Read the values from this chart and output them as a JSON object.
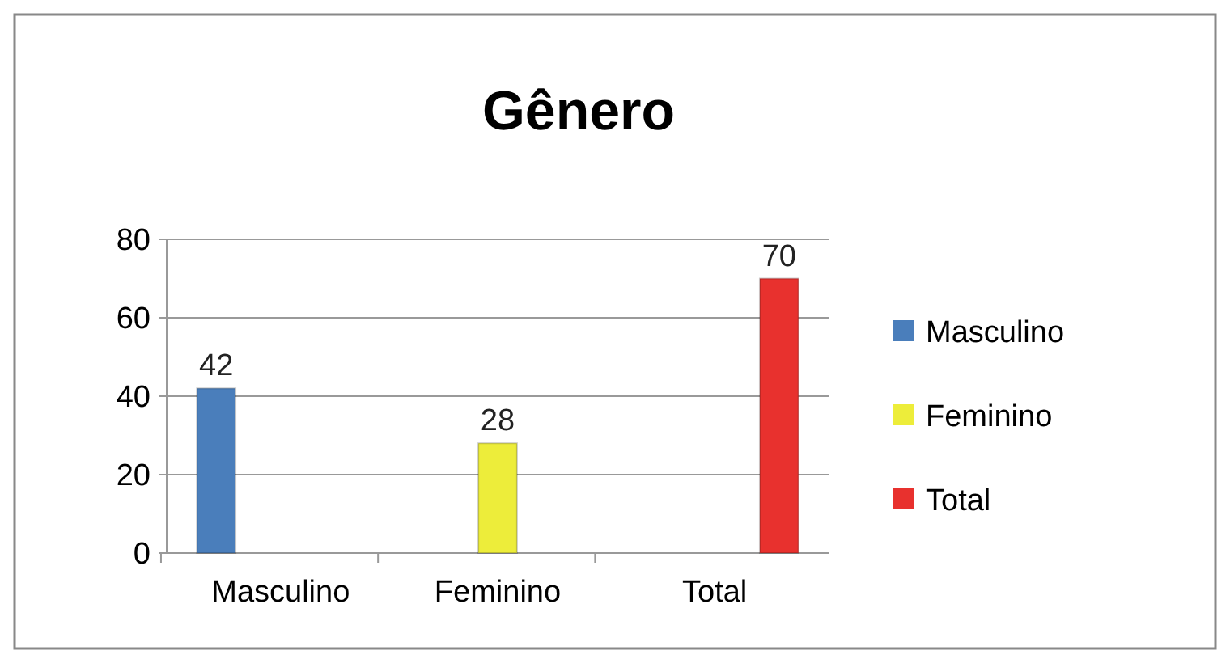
{
  "chart_data": {
    "type": "bar",
    "title": "Gênero",
    "categories": [
      "Masculino",
      "Feminino",
      "Total"
    ],
    "series": [
      {
        "name": "Masculino",
        "color": "#4a7ebb",
        "values": [
          42,
          null,
          null
        ]
      },
      {
        "name": "Feminino",
        "color": "#eded3a",
        "values": [
          null,
          28,
          null
        ]
      },
      {
        "name": "Total",
        "color": "#e8312e",
        "values": [
          null,
          null,
          70
        ]
      }
    ],
    "ylim": [
      0,
      80
    ],
    "yticks": [
      0,
      20,
      40,
      60,
      80
    ],
    "grid": "y",
    "legend": "right",
    "data_labels": true
  }
}
